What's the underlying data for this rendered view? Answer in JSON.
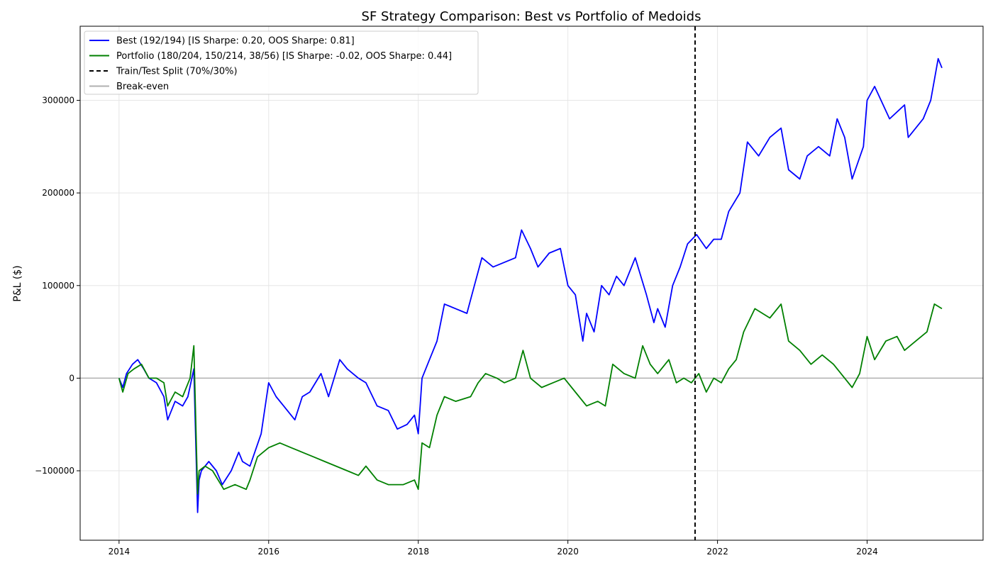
{
  "chart_data": {
    "type": "line",
    "title": "SF Strategy Comparison: Best vs Portfolio of Medoids",
    "xlabel": "",
    "ylabel": "P&L ($)",
    "xlim": [
      2013.48,
      2025.55
    ],
    "ylim": [
      -175000,
      380000
    ],
    "x_ticks": [
      2014,
      2016,
      2018,
      2020,
      2022,
      2024
    ],
    "x_tick_labels": [
      "2014",
      "2016",
      "2018",
      "2020",
      "2022",
      "2024"
    ],
    "y_ticks": [
      -100000,
      0,
      100000,
      200000,
      300000
    ],
    "y_tick_labels": [
      "−100000",
      "0",
      "100000",
      "200000",
      "300000"
    ],
    "grid": true,
    "legend_position": "top-left",
    "series": [
      {
        "name": "Best (192/194) [IS Sharpe: 0.20, OOS Sharpe: 0.81]",
        "color": "#0000ff",
        "x": [
          2014.0,
          2014.05,
          2014.1,
          2014.18,
          2014.25,
          2014.33,
          2014.4,
          2014.5,
          2014.6,
          2014.65,
          2014.75,
          2014.85,
          2014.92,
          2015.0,
          2015.05,
          2015.07,
          2015.1,
          2015.2,
          2015.3,
          2015.38,
          2015.5,
          2015.6,
          2015.65,
          2015.75,
          2015.9,
          2016.0,
          2016.1,
          2016.2,
          2016.35,
          2016.45,
          2016.55,
          2016.7,
          2016.8,
          2016.95,
          2017.05,
          2017.2,
          2017.3,
          2017.45,
          2017.6,
          2017.72,
          2017.85,
          2017.95,
          2018.0,
          2018.05,
          2018.15,
          2018.25,
          2018.35,
          2018.5,
          2018.65,
          2018.75,
          2018.85,
          2019.0,
          2019.15,
          2019.3,
          2019.38,
          2019.5,
          2019.6,
          2019.75,
          2019.9,
          2020.0,
          2020.1,
          2020.2,
          2020.25,
          2020.35,
          2020.45,
          2020.55,
          2020.65,
          2020.75,
          2020.9,
          2021.05,
          2021.15,
          2021.2,
          2021.3,
          2021.4,
          2021.5,
          2021.6,
          2021.72,
          2021.85,
          2021.95,
          2022.05,
          2022.15,
          2022.3,
          2022.4,
          2022.55,
          2022.7,
          2022.85,
          2022.95,
          2023.1,
          2023.2,
          2023.35,
          2023.5,
          2023.6,
          2023.7,
          2023.8,
          2023.95,
          2024.0,
          2024.1,
          2024.3,
          2024.5,
          2024.55,
          2024.75,
          2024.85,
          2024.95,
          2025.0
        ],
        "y": [
          0,
          -10000,
          5000,
          15000,
          20000,
          10000,
          0,
          -5000,
          -20000,
          -45000,
          -25000,
          -30000,
          -20000,
          10000,
          -145000,
          -110000,
          -100000,
          -90000,
          -100000,
          -115000,
          -100000,
          -80000,
          -90000,
          -95000,
          -60000,
          -5000,
          -20000,
          -30000,
          -45000,
          -20000,
          -15000,
          5000,
          -20000,
          20000,
          10000,
          0,
          -5000,
          -30000,
          -35000,
          -55000,
          -50000,
          -40000,
          -60000,
          0,
          20000,
          40000,
          80000,
          75000,
          70000,
          100000,
          130000,
          120000,
          125000,
          130000,
          160000,
          140000,
          120000,
          135000,
          140000,
          100000,
          90000,
          40000,
          70000,
          50000,
          100000,
          90000,
          110000,
          100000,
          130000,
          90000,
          60000,
          75000,
          55000,
          100000,
          120000,
          145000,
          155000,
          140000,
          150000,
          150000,
          180000,
          200000,
          255000,
          240000,
          260000,
          270000,
          225000,
          215000,
          240000,
          250000,
          240000,
          280000,
          260000,
          215000,
          250000,
          300000,
          315000,
          280000,
          295000,
          260000,
          280000,
          300000,
          345000,
          335000
        ]
      },
      {
        "name": "Portfolio (180/204, 150/214, 38/56) [IS Sharpe: -0.02, OOS Sharpe: 0.44]",
        "color": "#008000",
        "x": [
          2014.0,
          2014.05,
          2014.12,
          2014.2,
          2014.3,
          2014.4,
          2014.5,
          2014.6,
          2014.65,
          2014.75,
          2014.85,
          2014.95,
          2015.0,
          2015.05,
          2015.07,
          2015.15,
          2015.25,
          2015.4,
          2015.55,
          2015.7,
          2015.75,
          2015.85,
          2016.0,
          2016.15,
          2016.3,
          2016.45,
          2016.6,
          2016.75,
          2016.9,
          2017.05,
          2017.2,
          2017.3,
          2017.45,
          2017.6,
          2017.8,
          2017.95,
          2018.0,
          2018.05,
          2018.15,
          2018.25,
          2018.35,
          2018.5,
          2018.7,
          2018.8,
          2018.9,
          2019.05,
          2019.15,
          2019.3,
          2019.4,
          2019.5,
          2019.65,
          2019.8,
          2019.95,
          2020.1,
          2020.25,
          2020.4,
          2020.5,
          2020.6,
          2020.75,
          2020.9,
          2021.0,
          2021.1,
          2021.2,
          2021.35,
          2021.45,
          2021.55,
          2021.65,
          2021.75,
          2021.85,
          2021.95,
          2022.05,
          2022.15,
          2022.25,
          2022.35,
          2022.5,
          2022.7,
          2022.85,
          2022.95,
          2023.1,
          2023.25,
          2023.4,
          2023.55,
          2023.7,
          2023.8,
          2023.9,
          2024.0,
          2024.1,
          2024.25,
          2024.4,
          2024.5,
          2024.65,
          2024.8,
          2024.9,
          2025.0
        ],
        "y": [
          0,
          -15000,
          5000,
          10000,
          15000,
          0,
          0,
          -5000,
          -30000,
          -15000,
          -20000,
          0,
          35000,
          -125000,
          -100000,
          -95000,
          -100000,
          -120000,
          -115000,
          -120000,
          -110000,
          -85000,
          -75000,
          -70000,
          -75000,
          -80000,
          -85000,
          -90000,
          -95000,
          -100000,
          -105000,
          -95000,
          -110000,
          -115000,
          -115000,
          -110000,
          -120000,
          -70000,
          -75000,
          -40000,
          -20000,
          -25000,
          -20000,
          -5000,
          5000,
          0,
          -5000,
          0,
          30000,
          0,
          -10000,
          -5000,
          0,
          -15000,
          -30000,
          -25000,
          -30000,
          15000,
          5000,
          0,
          35000,
          15000,
          5000,
          20000,
          -5000,
          0,
          -5000,
          5000,
          -15000,
          0,
          -5000,
          10000,
          20000,
          50000,
          75000,
          65000,
          80000,
          40000,
          30000,
          15000,
          25000,
          15000,
          0,
          -10000,
          5000,
          45000,
          20000,
          40000,
          45000,
          30000,
          40000,
          50000,
          80000,
          75000
        ]
      }
    ],
    "split": {
      "name": "Train/Test Split (70%/30%)",
      "x": 2021.7,
      "color": "#000000"
    },
    "baseline": {
      "name": "Break-even",
      "y": 0,
      "color": "#b0b0b0"
    }
  }
}
